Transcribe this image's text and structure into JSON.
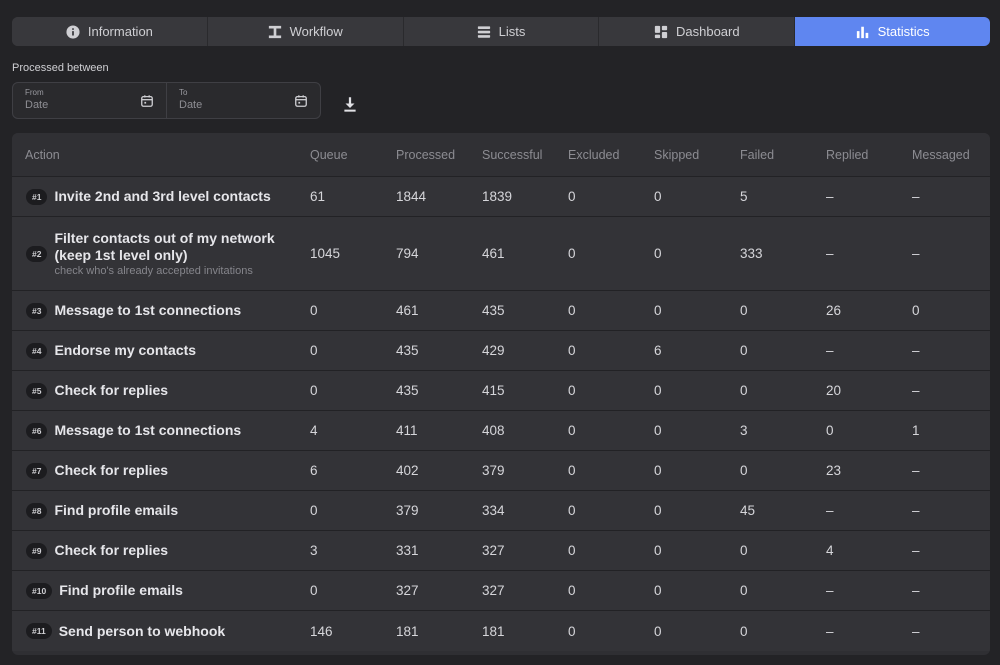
{
  "tabs": [
    {
      "label": "Information",
      "icon": "info-icon",
      "active": false
    },
    {
      "label": "Workflow",
      "icon": "workflow-icon",
      "active": false
    },
    {
      "label": "Lists",
      "icon": "list-icon",
      "active": false
    },
    {
      "label": "Dashboard",
      "icon": "dashboard-icon",
      "active": false
    },
    {
      "label": "Statistics",
      "icon": "bar-chart-icon",
      "active": true
    }
  ],
  "filter": {
    "label": "Processed between",
    "from_label": "From",
    "from_placeholder": "Date",
    "to_label": "To",
    "to_placeholder": "Date"
  },
  "colors": {
    "accent": "#5f86f0",
    "background": "#232326",
    "panel": "#333337"
  },
  "table": {
    "headers": [
      "Action",
      "Queue",
      "Processed",
      "Successful",
      "Excluded",
      "Skipped",
      "Failed",
      "Replied",
      "Messaged"
    ],
    "rows": [
      {
        "badge": "#1",
        "name": "Invite 2nd and 3rd level contacts",
        "sub": "",
        "values": [
          "61",
          "1844",
          "1839",
          "0",
          "0",
          "5",
          "–",
          "–"
        ]
      },
      {
        "badge": "#2",
        "name": "Filter contacts out of my network (keep 1st level only)",
        "sub": "check who's already accepted invitations",
        "values": [
          "1045",
          "794",
          "461",
          "0",
          "0",
          "333",
          "–",
          "–"
        ]
      },
      {
        "badge": "#3",
        "name": "Message to 1st connections",
        "sub": "",
        "values": [
          "0",
          "461",
          "435",
          "0",
          "0",
          "0",
          "26",
          "0"
        ]
      },
      {
        "badge": "#4",
        "name": "Endorse my contacts",
        "sub": "",
        "values": [
          "0",
          "435",
          "429",
          "0",
          "6",
          "0",
          "–",
          "–"
        ]
      },
      {
        "badge": "#5",
        "name": "Check for replies",
        "sub": "",
        "values": [
          "0",
          "435",
          "415",
          "0",
          "0",
          "0",
          "20",
          "–"
        ]
      },
      {
        "badge": "#6",
        "name": "Message to 1st connections",
        "sub": "",
        "values": [
          "4",
          "411",
          "408",
          "0",
          "0",
          "3",
          "0",
          "1"
        ]
      },
      {
        "badge": "#7",
        "name": "Check for replies",
        "sub": "",
        "values": [
          "6",
          "402",
          "379",
          "0",
          "0",
          "0",
          "23",
          "–"
        ]
      },
      {
        "badge": "#8",
        "name": "Find profile emails",
        "sub": "",
        "values": [
          "0",
          "379",
          "334",
          "0",
          "0",
          "45",
          "–",
          "–"
        ]
      },
      {
        "badge": "#9",
        "name": "Check for replies",
        "sub": "",
        "values": [
          "3",
          "331",
          "327",
          "0",
          "0",
          "0",
          "4",
          "–"
        ]
      },
      {
        "badge": "#10",
        "name": "Find profile emails",
        "sub": "",
        "values": [
          "0",
          "327",
          "327",
          "0",
          "0",
          "0",
          "–",
          "–"
        ]
      },
      {
        "badge": "#11",
        "name": "Send person to webhook",
        "sub": "",
        "values": [
          "146",
          "181",
          "181",
          "0",
          "0",
          "0",
          "–",
          "–"
        ]
      }
    ]
  }
}
